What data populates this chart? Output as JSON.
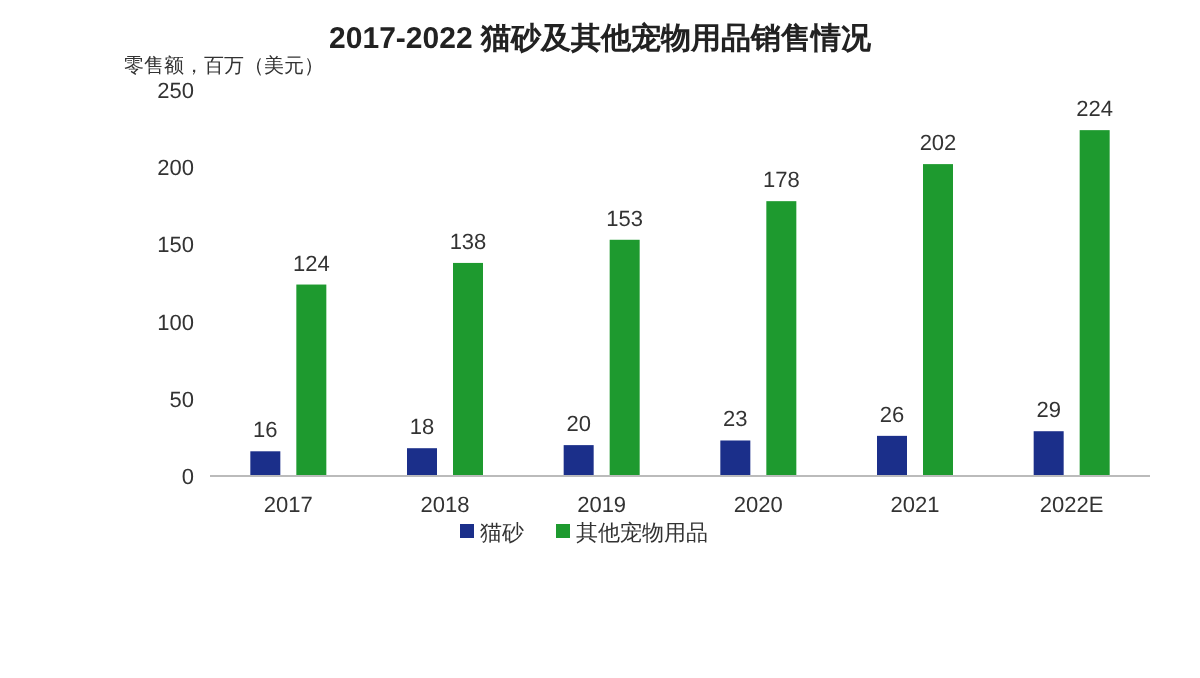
{
  "chart_data": {
    "type": "bar",
    "title": "2017-2022 猫砂及其他宠物用品销售情况",
    "ylabel": "零售额，百万（美元）",
    "categories": [
      "2017",
      "2018",
      "2019",
      "2020",
      "2021",
      "2022E"
    ],
    "series": [
      {
        "name": "猫砂",
        "color": "#1b2f8a",
        "values": [
          16,
          18,
          20,
          23,
          26,
          29
        ]
      },
      {
        "name": "其他宠物用品",
        "color": "#1e9a2f",
        "values": [
          124,
          138,
          153,
          178,
          202,
          224
        ]
      }
    ],
    "ylim": [
      0,
      250
    ],
    "yticks": [
      0,
      50,
      100,
      150,
      200,
      250
    ],
    "data_labels": true,
    "legend": "bottom",
    "grid": false
  }
}
